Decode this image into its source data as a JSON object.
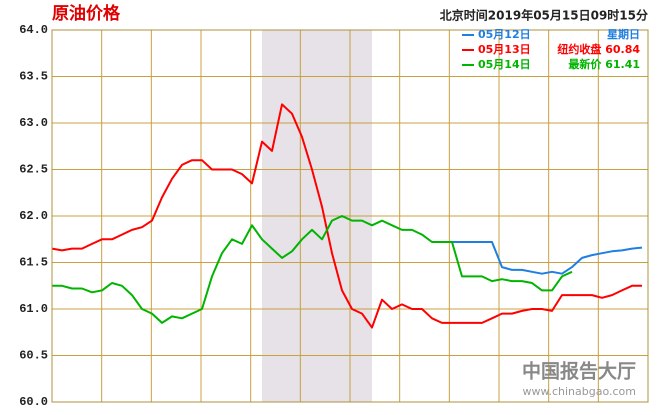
{
  "chart_data": {
    "type": "line",
    "title": "原油价格",
    "subtitle": "北京时间2019年05月15日09时15分",
    "categories": [
      null,
      null,
      null,
      null,
      null,
      null,
      null,
      null,
      null,
      null,
      null,
      null,
      null,
      null,
      null,
      null,
      null,
      null,
      null,
      null,
      null,
      null,
      null,
      null,
      null,
      null,
      null,
      null,
      null,
      null,
      null,
      null,
      null,
      null,
      null,
      null,
      null,
      null,
      null,
      null,
      null,
      null,
      null,
      null,
      null,
      null,
      null,
      null,
      null,
      null,
      null,
      null,
      null,
      null,
      null,
      null,
      null,
      null,
      null,
      null
    ],
    "ylim": [
      60.0,
      64.0
    ],
    "yticks": [
      {
        "value": 60,
        "label": "60.0"
      },
      {
        "value": 60.5,
        "label": "60.5"
      },
      {
        "value": 61,
        "label": "61.0"
      },
      {
        "value": 61.5,
        "label": "61.5"
      },
      {
        "value": 62,
        "label": "62.0"
      },
      {
        "value": 62.5,
        "label": "62.5"
      },
      {
        "value": 63,
        "label": "63.0"
      },
      {
        "value": 63.5,
        "label": "63.5"
      },
      {
        "value": 64,
        "label": "64.0"
      }
    ],
    "grid": true,
    "series": [
      {
        "name": "05月12日",
        "note": "星期日",
        "color": "#1e7fe0",
        "values": [
          null,
          null,
          null,
          null,
          null,
          null,
          null,
          null,
          null,
          null,
          null,
          null,
          null,
          null,
          null,
          null,
          null,
          null,
          null,
          null,
          null,
          null,
          null,
          null,
          null,
          null,
          null,
          null,
          null,
          null,
          null,
          null,
          null,
          null,
          null,
          null,
          null,
          null,
          null,
          null,
          61.72,
          61.72,
          61.72,
          61.72,
          61.72,
          61.45,
          61.42,
          61.42,
          61.4,
          61.38,
          61.4,
          61.38,
          61.45,
          61.55,
          61.58,
          61.6,
          61.62,
          61.63,
          61.65,
          61.66
        ]
      },
      {
        "name": "05月13日",
        "note": "纽约收盘 60.84",
        "color": "#ff0000",
        "values": [
          61.65,
          61.63,
          61.65,
          61.65,
          61.7,
          61.75,
          61.75,
          61.8,
          61.85,
          61.88,
          61.95,
          62.2,
          62.4,
          62.55,
          62.6,
          62.6,
          62.5,
          62.5,
          62.5,
          62.45,
          62.35,
          62.8,
          62.7,
          63.2,
          63.1,
          62.85,
          62.5,
          62.1,
          61.6,
          61.2,
          61.0,
          60.95,
          60.8,
          61.1,
          61.0,
          61.05,
          61.0,
          61.0,
          60.9,
          60.85,
          60.85,
          60.85,
          60.85,
          60.85,
          60.9,
          60.95,
          60.95,
          60.98,
          61.0,
          61.0,
          60.98,
          61.15,
          61.15,
          61.15,
          61.15,
          61.12,
          61.15,
          61.2,
          61.25,
          61.25
        ]
      },
      {
        "name": "05月14日",
        "note": "最新价 61.41",
        "color": "#00b400",
        "values": [
          61.25,
          61.25,
          61.22,
          61.22,
          61.18,
          61.2,
          61.28,
          61.25,
          61.15,
          61.0,
          60.95,
          60.85,
          60.92,
          60.9,
          60.95,
          61.0,
          61.35,
          61.6,
          61.75,
          61.7,
          61.9,
          61.75,
          61.65,
          61.55,
          61.62,
          61.75,
          61.85,
          61.75,
          61.95,
          62.0,
          61.95,
          61.95,
          61.9,
          61.95,
          61.9,
          61.85,
          61.85,
          61.8,
          61.72,
          61.72,
          61.72,
          61.35,
          61.35,
          61.35,
          61.3,
          61.32,
          61.3,
          61.3,
          61.28,
          61.2,
          61.2,
          61.35,
          61.4,
          null,
          null,
          null,
          null,
          null,
          null,
          null
        ]
      }
    ]
  },
  "watermark": {
    "name": "中国报告大厅",
    "url": "www.chinabgao.com"
  }
}
